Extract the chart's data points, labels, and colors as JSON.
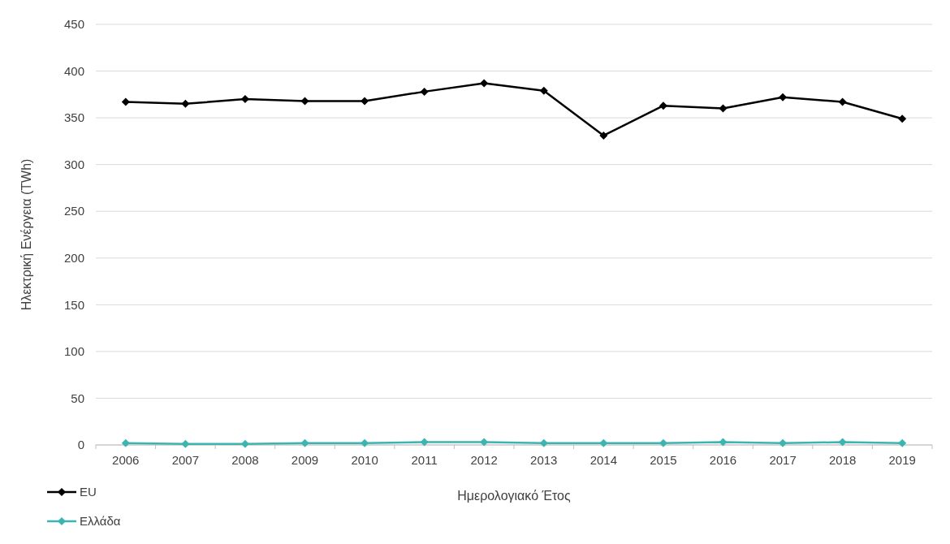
{
  "chart_data": {
    "type": "line",
    "xlabel": "Ημερολογιακό Έτος",
    "ylabel": "Ηλεκτρική Ενέργεια (TWh)",
    "categories": [
      "2006",
      "2007",
      "2008",
      "2009",
      "2010",
      "2011",
      "2012",
      "2013",
      "2014",
      "2015",
      "2016",
      "2017",
      "2018",
      "2019"
    ],
    "series": [
      {
        "name": "EU",
        "color": "#000000",
        "values": [
          367,
          365,
          370,
          368,
          368,
          378,
          387,
          379,
          331,
          363,
          360,
          372,
          367,
          349
        ]
      },
      {
        "name": "Ελλάδα",
        "color": "#3cb4b0",
        "values": [
          2,
          1,
          1,
          2,
          2,
          3,
          3,
          2,
          2,
          2,
          3,
          2,
          3,
          2
        ]
      }
    ],
    "ylim": [
      0,
      450
    ],
    "yticks": [
      0,
      50,
      100,
      150,
      200,
      250,
      300,
      350,
      400,
      450
    ],
    "grid": "y",
    "legend": "bottom left",
    "marker": "diamond",
    "line_style": "solid"
  }
}
